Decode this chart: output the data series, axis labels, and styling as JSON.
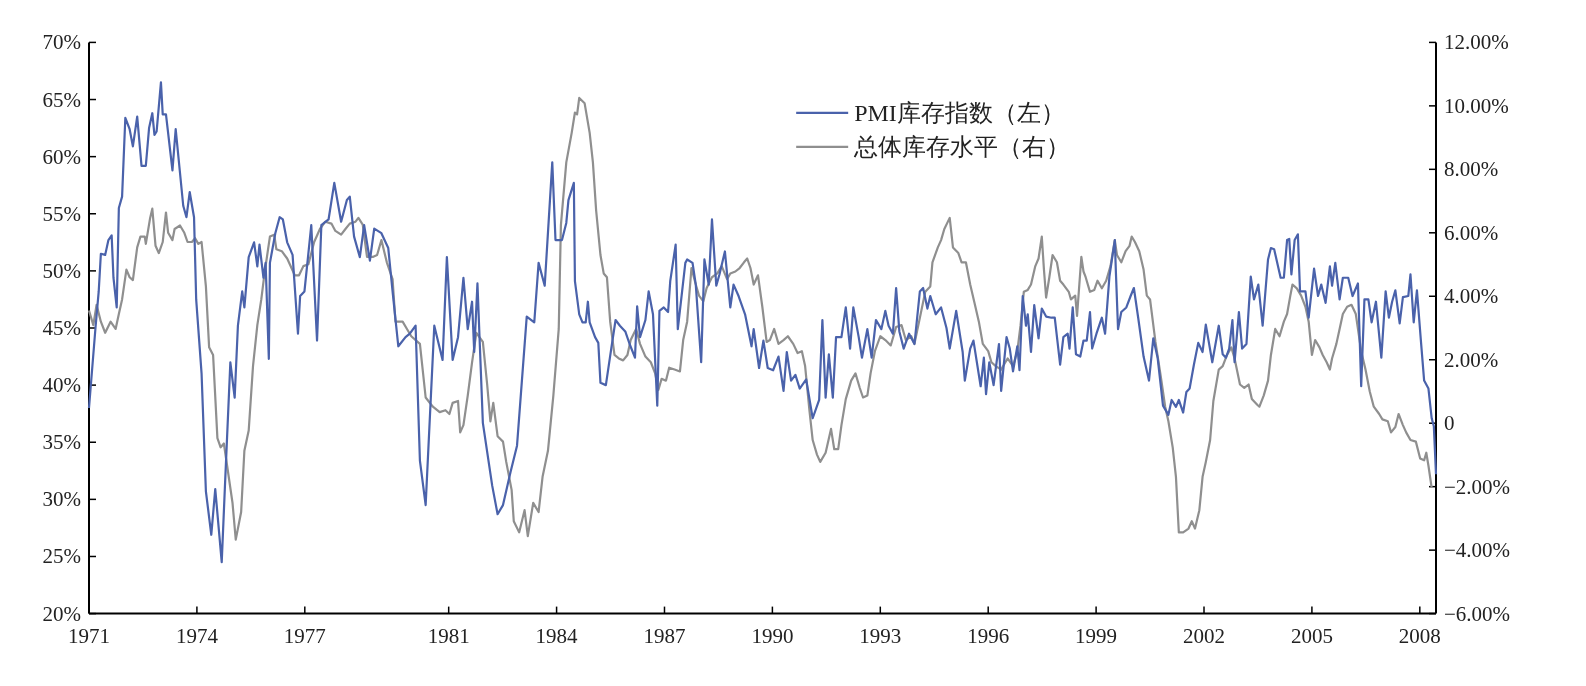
{
  "chart_data": {
    "type": "line",
    "legend": "top",
    "xlim": [
      1971,
      2008.45
    ],
    "xticks": [
      1971,
      1974,
      1977,
      1981,
      1984,
      1987,
      1990,
      1993,
      1996,
      1999,
      2002,
      2005,
      2008
    ],
    "ylim": [
      20,
      70
    ],
    "yticks": [
      {
        "value": 20,
        "label": "20%"
      },
      {
        "value": 25,
        "label": "25%"
      },
      {
        "value": 30,
        "label": "30%"
      },
      {
        "value": 35,
        "label": "35%"
      },
      {
        "value": 40,
        "label": "40%"
      },
      {
        "value": 45,
        "label": "45%"
      },
      {
        "value": 50,
        "label": "50%"
      },
      {
        "value": 55,
        "label": "55%"
      },
      {
        "value": 60,
        "label": "60%"
      },
      {
        "value": 65,
        "label": "65%"
      },
      {
        "value": 70,
        "label": "70%"
      }
    ],
    "y2lim": [
      -6,
      12
    ],
    "y2ticks": [
      {
        "value": -6,
        "label": "−6.00%"
      },
      {
        "value": -4,
        "label": "−4.00%"
      },
      {
        "value": -2,
        "label": "−2.00%"
      },
      {
        "value": 0,
        "label": "0"
      },
      {
        "value": 2,
        "label": "2.00%"
      },
      {
        "value": 4,
        "label": "4.00%"
      },
      {
        "value": 6,
        "label": "6.00%"
      },
      {
        "value": 8,
        "label": "8.00%"
      },
      {
        "value": 10,
        "label": "10.00%"
      },
      {
        "value": 12,
        "label": "12.00%"
      }
    ],
    "series": [
      {
        "name": "PMI库存指数（左）",
        "color": "#4a62ab",
        "x": [
          1971.0,
          1971.18,
          1971.27,
          1971.33,
          1971.45,
          1971.54,
          1971.63,
          1971.68,
          1971.77,
          1971.83,
          1971.92,
          1972.01,
          1972.13,
          1972.22,
          1972.34,
          1972.46,
          1972.58,
          1972.67,
          1972.76,
          1972.82,
          1972.88,
          1973.0,
          1973.05,
          1973.14,
          1973.32,
          1973.41,
          1973.62,
          1973.71,
          1973.8,
          1973.92,
          1973.98,
          1974.13,
          1974.25,
          1974.4,
          1974.51,
          1974.69,
          1974.78,
          1974.93,
          1975.05,
          1975.14,
          1975.26,
          1975.32,
          1975.44,
          1975.59,
          1975.68,
          1975.74,
          1975.85,
          1975.91,
          1976.0,
          1976.03,
          1976.18,
          1976.3,
          1976.39,
          1976.51,
          1976.66,
          1976.81,
          1976.87,
          1976.99,
          1977.18,
          1977.34,
          1977.46,
          1977.66,
          1977.82,
          1978.01,
          1978.17,
          1978.25,
          1978.37,
          1978.53,
          1978.65,
          1978.81,
          1978.93,
          1979.13,
          1979.32,
          1979.44,
          1979.6,
          1979.8,
          1979.92,
          1980.08,
          1980.2,
          1980.36,
          1980.6,
          1980.83,
          1980.95,
          1981.11,
          1981.26,
          1981.41,
          1981.53,
          1981.65,
          1981.71,
          1981.8,
          1981.95,
          1982.21,
          1982.36,
          1982.51,
          1982.72,
          1982.9,
          1983.17,
          1983.38,
          1983.5,
          1983.67,
          1983.88,
          1983.97,
          1984.15,
          1984.27,
          1984.33,
          1984.48,
          1984.51,
          1984.63,
          1984.72,
          1984.81,
          1984.87,
          1984.92,
          1985.07,
          1985.16,
          1985.22,
          1985.37,
          1985.52,
          1985.64,
          1985.76,
          1985.91,
          1986.03,
          1986.18,
          1986.24,
          1986.32,
          1986.47,
          1986.56,
          1986.68,
          1986.8,
          1986.86,
          1986.98,
          1987.1,
          1987.16,
          1987.31,
          1987.37,
          1987.49,
          1987.58,
          1987.63,
          1987.78,
          1987.87,
          1988.02,
          1988.11,
          1988.23,
          1988.32,
          1988.44,
          1988.53,
          1988.68,
          1988.83,
          1988.92,
          1989.06,
          1989.24,
          1989.42,
          1989.48,
          1989.63,
          1989.75,
          1989.87,
          1990.02,
          1990.17,
          1990.31,
          1990.4,
          1990.52,
          1990.64,
          1990.76,
          1990.94,
          1991.12,
          1991.3,
          1991.39,
          1991.48,
          1991.57,
          1991.68,
          1991.77,
          1991.92,
          1992.04,
          1992.16,
          1992.25,
          1992.4,
          1992.49,
          1992.64,
          1992.76,
          1992.88,
          1993.03,
          1993.14,
          1993.23,
          1993.35,
          1993.44,
          1993.53,
          1993.65,
          1993.8,
          1993.95,
          1994.1,
          1994.19,
          1994.31,
          1994.39,
          1994.54,
          1994.69,
          1994.84,
          1994.93,
          1995.11,
          1995.29,
          1995.35,
          1995.5,
          1995.59,
          1995.79,
          1995.88,
          1995.94,
          1996.03,
          1996.15,
          1996.3,
          1996.36,
          1996.51,
          1996.6,
          1996.69,
          1996.81,
          1996.87,
          1996.96,
          1997.05,
          1997.1,
          1997.19,
          1997.28,
          1997.4,
          1997.49,
          1997.61,
          1997.76,
          1997.85,
          1998.0,
          1998.09,
          1998.21,
          1998.26,
          1998.35,
          1998.44,
          1998.56,
          1998.65,
          1998.74,
          1998.83,
          1998.89,
          1999.01,
          1999.16,
          1999.25,
          1999.37,
          1999.52,
          1999.55,
          1999.61,
          1999.7,
          1999.84,
          1999.96,
          2000.05,
          2000.17,
          2000.32,
          2000.47,
          2000.59,
          2000.71,
          2000.86,
          2001.01,
          2001.1,
          2001.22,
          2001.3,
          2001.42,
          2001.51,
          2001.6,
          2001.72,
          2001.84,
          2001.96,
          2002.05,
          2002.23,
          2002.41,
          2002.52,
          2002.61,
          2002.7,
          2002.79,
          2002.85,
          2002.97,
          2003.06,
          2003.18,
          2003.3,
          2003.39,
          2003.51,
          2003.63,
          2003.78,
          2003.86,
          2003.95,
          2004.13,
          2004.22,
          2004.31,
          2004.37,
          2004.43,
          2004.52,
          2004.61,
          2004.67,
          2004.82,
          2004.91,
          2005.06,
          2005.17,
          2005.26,
          2005.38,
          2005.5,
          2005.56,
          2005.65,
          2005.77,
          2005.86,
          2006.01,
          2006.13,
          2006.28,
          2006.37,
          2006.46,
          2006.57,
          2006.66,
          2006.78,
          2006.93,
          2007.05,
          2007.14,
          2007.23,
          2007.32,
          2007.44,
          2007.53,
          2007.68,
          2007.74,
          2007.83,
          2007.92,
          2008.03,
          2008.12,
          2008.24,
          2008.33,
          2008.39,
          2008.45
        ],
        "values": [
          38.0,
          45.0,
          48.2,
          51.5,
          51.4,
          52.7,
          53.1,
          49.4,
          46.8,
          55.5,
          56.5,
          63.4,
          62.4,
          60.9,
          63.5,
          59.2,
          59.2,
          62.5,
          63.8,
          61.9,
          62.2,
          66.5,
          63.7,
          63.7,
          58.8,
          62.4,
          55.7,
          54.7,
          56.9,
          54.7,
          47.5,
          41.0,
          30.7,
          26.9,
          30.9,
          24.5,
          31.2,
          42.0,
          38.9,
          45.2,
          48.2,
          46.8,
          51.2,
          52.5,
          50.4,
          52.3,
          49.4,
          50.7,
          42.3,
          50.7,
          53.3,
          54.7,
          54.5,
          52.5,
          51.4,
          44.5,
          47.8,
          48.2,
          54.0,
          43.9,
          54.0,
          54.5,
          57.7,
          54.3,
          56.2,
          56.5,
          53.0,
          51.2,
          54.0,
          50.9,
          53.7,
          53.3,
          52.0,
          48.2,
          43.4,
          44.2,
          44.5,
          45.2,
          33.4,
          29.5,
          45.2,
          42.2,
          51.2,
          42.2,
          44.2,
          49.4,
          44.9,
          47.3,
          42.9,
          48.9,
          36.7,
          31.2,
          28.7,
          29.5,
          32.4,
          34.7,
          46.0,
          45.5,
          50.7,
          48.7,
          59.5,
          52.7,
          52.7,
          54.2,
          56.2,
          57.7,
          49.1,
          46.2,
          45.5,
          45.5,
          47.3,
          45.5,
          44.2,
          43.7,
          40.2,
          40.0,
          43.2,
          45.7,
          45.2,
          44.7,
          43.6,
          42.4,
          46.9,
          44.2,
          45.7,
          48.2,
          46.2,
          38.2,
          46.5,
          46.8,
          46.4,
          49.1,
          52.3,
          44.9,
          48.2,
          50.7,
          51.0,
          50.7,
          48.8,
          42.0,
          51.0,
          48.8,
          54.5,
          48.7,
          49.7,
          51.7,
          46.8,
          48.8,
          47.8,
          46.2,
          43.4,
          44.9,
          41.5,
          43.9,
          41.5,
          41.3,
          42.5,
          39.5,
          42.9,
          40.4,
          40.9,
          39.7,
          40.5,
          37.1,
          38.7,
          45.7,
          38.9,
          42.7,
          38.9,
          44.2,
          44.2,
          46.8,
          43.2,
          46.8,
          44.2,
          42.4,
          44.9,
          42.4,
          45.7,
          44.9,
          46.5,
          45.2,
          44.5,
          48.5,
          44.7,
          43.2,
          44.5,
          43.6,
          48.2,
          48.5,
          46.7,
          47.8,
          46.2,
          46.8,
          45.0,
          43.2,
          46.5,
          42.9,
          40.4,
          43.2,
          43.9,
          39.9,
          42.4,
          39.2,
          42.0,
          40.0,
          43.6,
          39.5,
          44.2,
          43.2,
          41.2,
          43.4,
          41.3,
          47.8,
          45.2,
          46.2,
          42.9,
          47.0,
          44.1,
          46.7,
          46.0,
          45.9,
          45.9,
          41.8,
          44.2,
          44.5,
          43.2,
          46.8,
          42.7,
          42.5,
          43.9,
          43.9,
          46.4,
          43.2,
          44.5,
          45.9,
          44.5,
          49.5,
          52.7,
          49.9,
          44.9,
          46.4,
          46.8,
          47.8,
          48.5,
          45.9,
          42.5,
          40.4,
          44.1,
          42.4,
          38.2,
          37.4,
          38.7,
          38.1,
          38.7,
          37.6,
          39.4,
          39.7,
          41.8,
          43.7,
          42.9,
          45.3,
          42.0,
          45.2,
          42.7,
          42.4,
          43.2,
          45.7,
          42.0,
          46.4,
          43.2,
          43.6,
          49.5,
          47.5,
          48.8,
          45.2,
          51.0,
          52.0,
          51.9,
          49.4,
          49.4,
          52.7,
          52.8,
          49.7,
          52.7,
          53.2,
          48.2,
          48.2,
          45.9,
          50.2,
          47.8,
          48.8,
          47.2,
          50.4,
          48.7,
          50.7,
          47.5,
          49.4,
          49.4,
          47.8,
          48.9,
          39.9,
          47.5,
          47.5,
          45.5,
          47.3,
          42.4,
          48.2,
          45.9,
          47.3,
          48.3,
          45.4,
          47.7,
          47.8,
          49.7,
          45.5,
          48.3,
          43.9,
          40.4,
          39.7,
          37.1,
          36.4,
          32.2
        ]
      },
      {
        "name": "总体库存水平（右）",
        "color": "#8f8f8f",
        "axis": "y2",
        "x": [
          1971.0,
          1971.12,
          1971.21,
          1971.33,
          1971.45,
          1971.6,
          1971.74,
          1971.83,
          1971.92,
          1972.04,
          1972.13,
          1972.22,
          1972.34,
          1972.43,
          1972.55,
          1972.58,
          1972.7,
          1972.76,
          1972.85,
          1972.94,
          1973.05,
          1973.14,
          1973.2,
          1973.32,
          1973.38,
          1973.53,
          1973.65,
          1973.74,
          1973.86,
          1973.95,
          1974.04,
          1974.13,
          1974.25,
          1974.34,
          1974.45,
          1974.57,
          1974.66,
          1974.75,
          1974.84,
          1974.99,
          1975.08,
          1975.23,
          1975.32,
          1975.44,
          1975.56,
          1975.68,
          1975.79,
          1975.88,
          1976.03,
          1976.15,
          1976.21,
          1976.36,
          1976.51,
          1976.63,
          1976.72,
          1976.84,
          1976.96,
          1977.1,
          1977.26,
          1977.42,
          1977.57,
          1977.74,
          1977.85,
          1978.01,
          1978.13,
          1978.25,
          1978.41,
          1978.49,
          1978.61,
          1978.73,
          1978.89,
          1979.01,
          1979.13,
          1979.28,
          1979.44,
          1979.52,
          1979.72,
          1979.84,
          1979.96,
          1980.2,
          1980.36,
          1980.56,
          1980.75,
          1980.91,
          1981.02,
          1981.11,
          1981.26,
          1981.32,
          1981.41,
          1981.53,
          1981.65,
          1981.77,
          1981.95,
          1982.07,
          1982.16,
          1982.24,
          1982.36,
          1982.51,
          1982.6,
          1982.75,
          1982.81,
          1982.96,
          1983.11,
          1983.2,
          1983.35,
          1983.5,
          1983.61,
          1983.76,
          1983.91,
          1984.06,
          1984.12,
          1984.27,
          1984.42,
          1984.51,
          1984.57,
          1984.63,
          1984.78,
          1984.92,
          1985.01,
          1985.1,
          1985.22,
          1985.31,
          1985.4,
          1985.49,
          1985.61,
          1985.73,
          1985.85,
          1985.97,
          1986.06,
          1986.21,
          1986.32,
          1986.47,
          1986.62,
          1986.74,
          1986.83,
          1986.92,
          1987.04,
          1987.13,
          1987.28,
          1987.43,
          1987.52,
          1987.63,
          1987.75,
          1987.87,
          1987.96,
          1988.08,
          1988.17,
          1988.32,
          1988.47,
          1988.59,
          1988.74,
          1988.83,
          1988.97,
          1989.09,
          1989.21,
          1989.3,
          1989.39,
          1989.48,
          1989.6,
          1989.72,
          1989.84,
          1989.93,
          1990.05,
          1990.17,
          1990.31,
          1990.43,
          1990.58,
          1990.7,
          1990.82,
          1990.91,
          1991.03,
          1991.12,
          1991.24,
          1991.33,
          1991.48,
          1991.63,
          1991.72,
          1991.83,
          1991.92,
          1992.04,
          1992.19,
          1992.31,
          1992.43,
          1992.52,
          1992.64,
          1992.73,
          1992.85,
          1993.0,
          1993.14,
          1993.29,
          1993.44,
          1993.59,
          1993.71,
          1993.86,
          1993.95,
          1994.1,
          1994.25,
          1994.39,
          1994.45,
          1994.6,
          1994.69,
          1994.78,
          1994.93,
          1995.02,
          1995.17,
          1995.26,
          1995.38,
          1995.5,
          1995.62,
          1995.74,
          1995.85,
          1996.0,
          1996.09,
          1996.21,
          1996.36,
          1996.54,
          1996.69,
          1996.81,
          1996.9,
          1996.99,
          1997.1,
          1997.19,
          1997.31,
          1997.4,
          1997.49,
          1997.55,
          1997.61,
          1997.7,
          1997.79,
          1997.91,
          1998.0,
          1998.09,
          1998.24,
          1998.3,
          1998.42,
          1998.47,
          1998.59,
          1998.65,
          1998.71,
          1998.83,
          1998.95,
          1999.04,
          1999.16,
          1999.28,
          1999.4,
          1999.52,
          1999.58,
          1999.7,
          1999.82,
          1999.93,
          1999.99,
          2000.08,
          2000.2,
          2000.32,
          2000.41,
          2000.5,
          2000.65,
          2000.8,
          2000.92,
          2001.01,
          2001.13,
          2001.22,
          2001.3,
          2001.42,
          2001.57,
          2001.66,
          2001.75,
          2001.87,
          2001.96,
          2002.05,
          2002.17,
          2002.26,
          2002.41,
          2002.52,
          2002.64,
          2002.76,
          2002.85,
          2003.0,
          2003.12,
          2003.24,
          2003.33,
          2003.48,
          2003.54,
          2003.66,
          2003.78,
          2003.86,
          2003.98,
          2004.1,
          2004.22,
          2004.31,
          2004.4,
          2004.46,
          2004.58,
          2004.7,
          2004.82,
          2004.91,
          2005.0,
          2005.09,
          2005.21,
          2005.3,
          2005.41,
          2005.5,
          2005.56,
          2005.68,
          2005.77,
          2005.86,
          2005.98,
          2006.1,
          2006.22,
          2006.28,
          2006.37,
          2006.49,
          2006.61,
          2006.72,
          2006.87,
          2006.96,
          2007.11,
          2007.2,
          2007.32,
          2007.41,
          2007.53,
          2007.62,
          2007.74,
          2007.89,
          2008.01,
          2008.12,
          2008.18,
          2008.24,
          2008.33
        ],
        "values": [
          3.55,
          3.09,
          3.73,
          3.2,
          2.85,
          3.2,
          2.97,
          3.44,
          3.9,
          4.84,
          4.6,
          4.51,
          5.54,
          5.88,
          5.88,
          5.65,
          6.47,
          6.76,
          5.59,
          5.36,
          5.71,
          6.64,
          6.0,
          5.77,
          6.12,
          6.23,
          6.0,
          5.71,
          5.71,
          5.83,
          5.65,
          5.71,
          4.31,
          2.39,
          2.15,
          -0.47,
          -0.76,
          -0.64,
          -1.34,
          -2.51,
          -3.67,
          -2.8,
          -0.87,
          -0.23,
          1.8,
          3.09,
          3.9,
          4.72,
          5.88,
          5.94,
          5.48,
          5.42,
          5.19,
          4.89,
          4.66,
          4.66,
          4.95,
          5.01,
          5.71,
          6.12,
          6.35,
          6.29,
          6.06,
          5.94,
          6.12,
          6.29,
          6.35,
          6.47,
          6.26,
          5.24,
          5.24,
          5.3,
          5.77,
          5.07,
          4.54,
          3.2,
          3.2,
          2.97,
          2.74,
          2.5,
          0.81,
          0.52,
          0.35,
          0.41,
          0.29,
          0.64,
          0.7,
          -0.29,
          -0.06,
          0.87,
          1.92,
          2.85,
          2.56,
          1.22,
          0.06,
          0.64,
          -0.41,
          -0.58,
          -1.22,
          -2.1,
          -3.09,
          -3.44,
          -2.74,
          -3.56,
          -2.51,
          -2.8,
          -1.69,
          -0.87,
          0.87,
          2.97,
          6.24,
          8.22,
          9.15,
          9.79,
          9.73,
          10.25,
          10.08,
          9.15,
          8.22,
          6.7,
          5.3,
          4.72,
          4.6,
          3.2,
          2.15,
          2.04,
          1.98,
          2.15,
          2.62,
          2.97,
          2.5,
          2.1,
          1.92,
          1.57,
          1.05,
          1.4,
          1.34,
          1.75,
          1.69,
          1.63,
          2.62,
          3.2,
          4.89,
          4.37,
          4.02,
          3.84,
          4.25,
          4.6,
          4.72,
          4.95,
          4.54,
          4.72,
          4.78,
          4.89,
          5.07,
          5.19,
          4.89,
          4.37,
          4.66,
          3.67,
          2.56,
          2.62,
          2.97,
          2.5,
          2.62,
          2.74,
          2.5,
          2.21,
          2.27,
          1.8,
          0.4,
          -0.53,
          -0.99,
          -1.22,
          -0.93,
          -0.18,
          -0.82,
          -0.82,
          -0.06,
          0.76,
          1.34,
          1.57,
          1.11,
          0.81,
          0.87,
          1.57,
          2.27,
          2.74,
          2.62,
          2.45,
          3.03,
          3.09,
          2.62,
          2.74,
          2.5,
          3.32,
          4.14,
          4.31,
          5.07,
          5.54,
          5.77,
          6.12,
          6.47,
          5.54,
          5.36,
          5.07,
          5.07,
          4.37,
          3.79,
          3.2,
          2.5,
          2.27,
          1.92,
          1.8,
          1.69,
          2.04,
          1.8,
          2.27,
          3.09,
          4.14,
          4.2,
          4.37,
          4.95,
          5.19,
          5.88,
          4.84,
          3.96,
          4.6,
          5.3,
          5.07,
          4.49,
          4.37,
          4.14,
          3.9,
          4.02,
          3.38,
          5.24,
          4.78,
          4.6,
          4.14,
          4.2,
          4.49,
          4.25,
          4.49,
          4.95,
          5.77,
          5.3,
          5.07,
          5.42,
          5.59,
          5.88,
          5.71,
          5.42,
          4.84,
          4.02,
          3.9,
          2.56,
          1.46,
          0.52,
          0.06,
          -0.76,
          -1.69,
          -3.44,
          -3.44,
          -3.32,
          -3.09,
          -3.32,
          -2.74,
          -1.69,
          -1.22,
          -0.53,
          0.7,
          1.69,
          1.8,
          2.15,
          2.39,
          2.04,
          1.22,
          1.11,
          1.22,
          0.76,
          0.58,
          0.52,
          0.87,
          1.34,
          2.15,
          2.97,
          2.74,
          3.2,
          3.44,
          4.02,
          4.37,
          4.25,
          4.02,
          3.67,
          3.2,
          2.15,
          2.62,
          2.39,
          2.15,
          1.92,
          1.69,
          2.04,
          2.5,
          2.97,
          3.44,
          3.67,
          3.73,
          3.44,
          2.97,
          2.27,
          1.69,
          0.99,
          0.52,
          0.29,
          0.12,
          0.06,
          -0.29,
          -0.12,
          0.29,
          -0.06,
          -0.29,
          -0.53,
          -0.58,
          -1.11,
          -1.17,
          -0.93,
          -1.34,
          -2.04
        ]
      }
    ]
  }
}
